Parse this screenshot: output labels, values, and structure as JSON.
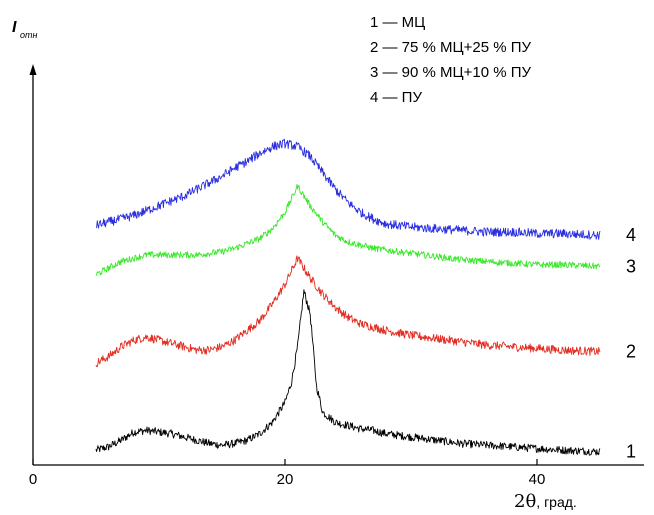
{
  "chart_data": {
    "type": "line",
    "title": "",
    "ylabel_main": "I",
    "ylabel_sub": "отн",
    "xlabel_symbol": "2θ",
    "xlabel_unit": ", град.",
    "xlim": [
      0,
      48
    ],
    "x_ticks": [
      0,
      20,
      40
    ],
    "x_tick_labels": [
      "0",
      "20",
      "40"
    ],
    "y_ticks_shown": false,
    "grid": false,
    "legend_position": "top-right",
    "legend": [
      "1 — МЦ",
      "2 — 75 % МЦ+25 % ПУ",
      "3 — 90 % МЦ+10 % ПУ",
      "4 — ПУ"
    ],
    "series": [
      {
        "id": "1",
        "curve_label": "1",
        "color": "#000000",
        "x": [
          5,
          6,
          7,
          8,
          9,
          10,
          11,
          12,
          13,
          14,
          15,
          16,
          17,
          18,
          19,
          20,
          20.5,
          21,
          21.5,
          22,
          22.5,
          23,
          24,
          25,
          26,
          27,
          28,
          30,
          32,
          34,
          36,
          38,
          40,
          42,
          45
        ],
        "y": [
          1.5,
          2.5,
          4.5,
          7,
          7.5,
          7,
          6.5,
          5.5,
          4.5,
          3.5,
          3,
          3.5,
          4.5,
          6.5,
          10,
          16,
          22,
          33,
          50,
          43,
          21,
          13,
          10,
          9,
          8,
          7.5,
          6.5,
          5.5,
          4.5,
          3.5,
          3,
          2.5,
          2,
          1.5,
          1
        ],
        "noise": 1.2
      },
      {
        "id": "2",
        "curve_label": "2",
        "color": "#e32d22",
        "x": [
          5,
          6,
          7,
          8,
          9,
          10,
          11,
          12,
          13,
          14,
          15,
          16,
          17,
          18,
          19,
          20,
          20.5,
          21,
          21.5,
          22,
          23,
          24,
          25,
          26,
          27,
          28,
          30,
          32,
          34,
          36,
          38,
          40,
          42,
          45
        ],
        "y": [
          28,
          30,
          33,
          35,
          36,
          35,
          34,
          33,
          32,
          32,
          33,
          35,
          38,
          41,
          46,
          52,
          56,
          60,
          57,
          54,
          49,
          45,
          42,
          40,
          39,
          38,
          36.5,
          35.5,
          34.5,
          33.5,
          33,
          32.5,
          32,
          31.5
        ],
        "noise": 1.3
      },
      {
        "id": "3",
        "curve_label": "3",
        "color": "#39e829",
        "x": [
          5,
          6,
          7,
          8,
          9,
          10,
          11,
          12,
          13,
          14,
          15,
          16,
          17,
          18,
          19,
          20,
          20.5,
          21,
          21.5,
          22,
          23,
          24,
          25,
          26,
          27,
          28,
          30,
          32,
          34,
          36,
          38,
          40,
          42,
          45
        ],
        "y": [
          55,
          57,
          59,
          60,
          61,
          61,
          61,
          61,
          61,
          61.5,
          62,
          63,
          64.5,
          66,
          69,
          74,
          78,
          82,
          79,
          76,
          71,
          67,
          65,
          64,
          63,
          62.5,
          61.5,
          60.5,
          59.5,
          59,
          58.5,
          58,
          58,
          57.5
        ],
        "noise": 1.0
      },
      {
        "id": "4",
        "curve_label": "4",
        "color": "#2b2fe0",
        "x": [
          5,
          6,
          7,
          8,
          9,
          10,
          11,
          12,
          13,
          14,
          15,
          16,
          17,
          18,
          19,
          20,
          21,
          22,
          23,
          24,
          25,
          26,
          27,
          28,
          29,
          30,
          32,
          34,
          36,
          38,
          40,
          42,
          45
        ],
        "y": [
          70,
          71,
          72,
          73,
          74.5,
          76,
          77.5,
          79,
          81,
          83,
          85,
          87.5,
          89.5,
          92,
          94,
          95,
          94,
          91,
          86,
          81,
          77,
          74,
          72,
          70.5,
          70,
          69.5,
          69,
          68.5,
          68,
          68,
          67.5,
          67.5,
          67
        ],
        "noise": 1.4
      }
    ]
  }
}
